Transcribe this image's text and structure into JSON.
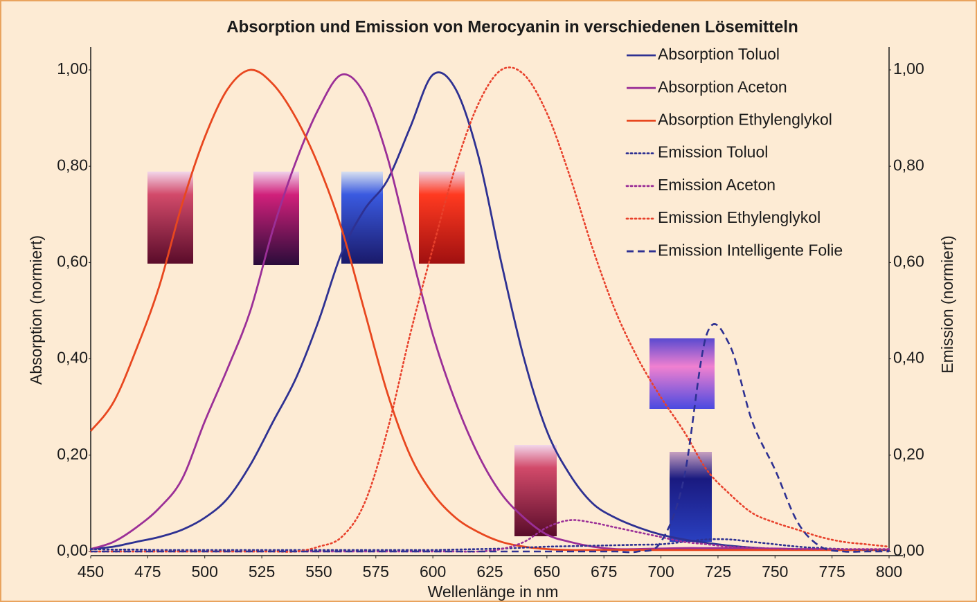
{
  "chart_data": {
    "type": "line",
    "title": "Absorption und Emission von Merocyanin in verschiedenen Lösemitteln",
    "x_label": "Wellenlänge in nm",
    "y_label": "Absorption (normiert)",
    "y2_label": "Emission (normiert)",
    "legend": "upper right",
    "x": [
      450,
      460,
      470,
      480,
      490,
      500,
      510,
      520,
      530,
      540,
      550,
      560,
      570,
      580,
      590,
      600,
      610,
      620,
      630,
      640,
      650,
      660,
      670,
      680,
      690,
      700,
      710,
      720,
      730,
      740,
      750,
      760,
      770,
      780,
      790,
      800
    ],
    "xlim": [
      450,
      800
    ],
    "xticks": [
      450,
      475,
      500,
      525,
      550,
      575,
      600,
      625,
      650,
      675,
      700,
      725,
      750,
      775,
      800
    ],
    "ylim": [
      0,
      1
    ],
    "yticks": [
      {
        "value": 0,
        "label": "0,00"
      },
      {
        "value": 0.2,
        "label": "0,20"
      },
      {
        "value": 0.4,
        "label": "0,40"
      },
      {
        "value": 0.6,
        "label": "0,60"
      },
      {
        "value": 0.8,
        "label": "0,80"
      },
      {
        "value": 1,
        "label": "1,00"
      }
    ],
    "y2lim": [
      0,
      1
    ],
    "y2ticks": [
      {
        "value": 0,
        "label": "0,00"
      },
      {
        "value": 0.2,
        "label": "0,20"
      },
      {
        "value": 0.4,
        "label": "0,40"
      },
      {
        "value": 0.6,
        "label": "0,60"
      },
      {
        "value": 0.8,
        "label": "0,80"
      },
      {
        "value": 1,
        "label": "1,00"
      }
    ],
    "series": [
      {
        "name": "Absorption Toluol",
        "color": "#2e3192",
        "line_style": "solid",
        "values": [
          0.005,
          0.01,
          0.02,
          0.03,
          0.045,
          0.07,
          0.11,
          0.18,
          0.27,
          0.36,
          0.48,
          0.62,
          0.71,
          0.77,
          0.88,
          0.99,
          0.96,
          0.82,
          0.6,
          0.4,
          0.25,
          0.16,
          0.1,
          0.07,
          0.05,
          0.035,
          0.025,
          0.018,
          0.012,
          0.008,
          0.005,
          0.004,
          0.004,
          0.003,
          0.003,
          0.003
        ]
      },
      {
        "name": "Absorption Aceton",
        "color": "#9b2f97",
        "line_style": "solid",
        "values": [
          0.005,
          0.02,
          0.05,
          0.09,
          0.15,
          0.27,
          0.38,
          0.5,
          0.67,
          0.81,
          0.92,
          0.99,
          0.95,
          0.82,
          0.63,
          0.45,
          0.31,
          0.2,
          0.12,
          0.07,
          0.035,
          0.02,
          0.01,
          0.005,
          0.005,
          0.006,
          0.007,
          0.007,
          0.007,
          0.006,
          0.006,
          0.005,
          0.005,
          0.004,
          0.004,
          0.004
        ]
      },
      {
        "name": "Absorption Ethylenglykol",
        "color": "#e8471f",
        "line_style": "solid",
        "values": [
          0.25,
          0.31,
          0.42,
          0.55,
          0.72,
          0.86,
          0.96,
          1.0,
          0.97,
          0.9,
          0.8,
          0.67,
          0.5,
          0.33,
          0.2,
          0.12,
          0.07,
          0.04,
          0.02,
          0.01,
          0.005,
          0.003,
          0.003,
          0.003,
          0.003,
          0.003,
          0.003,
          0.003,
          0.003,
          0.003,
          0.003,
          0.003,
          0.003,
          0.003,
          0.003,
          0.003
        ]
      },
      {
        "name": "Emission Toluol",
        "color": "#2e3192",
        "line_style": "dotted",
        "axis": "y2",
        "values": [
          0.005,
          0.004,
          0.004,
          0.003,
          0.003,
          0.003,
          0.003,
          0.003,
          0.003,
          0.003,
          0.003,
          0.003,
          0.003,
          0.003,
          0.003,
          0.003,
          0.004,
          0.005,
          0.006,
          0.008,
          0.01,
          0.011,
          0.012,
          0.013,
          0.014,
          0.015,
          0.02,
          0.025,
          0.025,
          0.02,
          0.015,
          0.01,
          0.007,
          0.005,
          0.004,
          0.003
        ]
      },
      {
        "name": "Emission Aceton",
        "color": "#9b2f97",
        "line_style": "dotted",
        "axis": "y2",
        "values": [
          0,
          0,
          0,
          0,
          0,
          0,
          0,
          0,
          0,
          0,
          0,
          0,
          0,
          0,
          0,
          0,
          0,
          0,
          0.005,
          0.02,
          0.05,
          0.065,
          0.06,
          0.05,
          0.04,
          0.03,
          0.02,
          0.015,
          0.01,
          0.008,
          0.006,
          0.005,
          0.005,
          0.005,
          0.005,
          0.005
        ]
      },
      {
        "name": "Emission Ethylenglykol",
        "color": "#e8412c",
        "line_style": "dotted",
        "axis": "y2",
        "values": [
          0,
          0,
          0,
          0,
          0,
          0,
          0,
          0,
          0,
          0,
          0.01,
          0.03,
          0.1,
          0.25,
          0.45,
          0.63,
          0.8,
          0.93,
          1.0,
          0.99,
          0.91,
          0.78,
          0.63,
          0.5,
          0.4,
          0.32,
          0.25,
          0.17,
          0.12,
          0.08,
          0.06,
          0.045,
          0.03,
          0.02,
          0.015,
          0.01
        ]
      },
      {
        "name": "Emission Intelligente Folie",
        "color": "#2e3192",
        "line_style": "dashed",
        "axis": "y2",
        "values": [
          0,
          0,
          0,
          0,
          0,
          0,
          0,
          0,
          0,
          0,
          0,
          0,
          0,
          0,
          0,
          0,
          0,
          0,
          0,
          0,
          0,
          0,
          0,
          0,
          0,
          0.02,
          0.15,
          0.45,
          0.43,
          0.27,
          0.17,
          0.06,
          0.01,
          0,
          0,
          0
        ]
      }
    ]
  }
}
